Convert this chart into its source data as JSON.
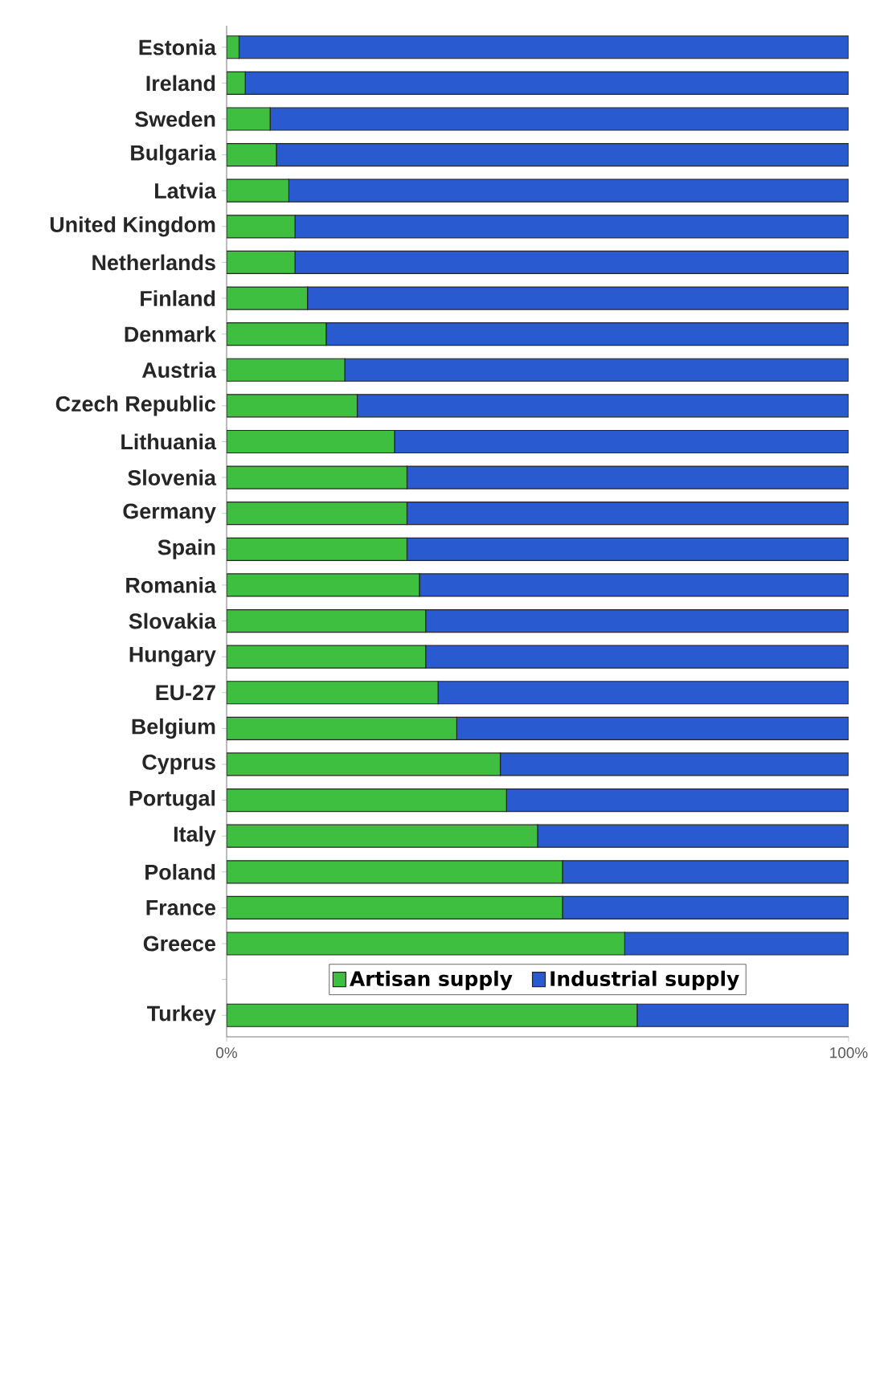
{
  "chart_data": {
    "type": "bar",
    "orientation": "horizontal",
    "stacked": true,
    "categories": [
      "Estonia",
      "Ireland",
      "Sweden",
      "Bulgaria",
      "Latvia",
      "United Kingdom",
      "Netherlands",
      "Finland",
      "Denmark",
      "Austria",
      "Czech Republic",
      "Lithuania",
      "Slovenia",
      "Germany",
      "Spain",
      "Romania",
      "Slovakia",
      "Hungary",
      "EU-27",
      "Belgium",
      "Cyprus",
      "Portugal",
      "Italy",
      "Poland",
      "France",
      "Greece",
      null,
      "Turkey"
    ],
    "series": [
      {
        "name": "Artisan supply",
        "color": "#3fbf3f",
        "values": [
          2,
          3,
          7,
          8,
          10,
          11,
          11,
          13,
          16,
          19,
          21,
          27,
          29,
          29,
          29,
          31,
          32,
          32,
          34,
          37,
          44,
          45,
          50,
          54,
          54,
          64,
          null,
          66
        ]
      },
      {
        "name": "Industrial supply",
        "color": "#2a5ad0",
        "values": [
          98,
          97,
          93,
          92,
          90,
          89,
          89,
          87,
          84,
          81,
          79,
          73,
          71,
          71,
          71,
          69,
          68,
          68,
          66,
          63,
          56,
          55,
          50,
          46,
          46,
          36,
          null,
          34
        ]
      }
    ],
    "xlim": [
      0,
      100
    ],
    "xticks": [
      {
        "value": 0,
        "label": "0%"
      },
      {
        "value": 100,
        "label": "100%"
      }
    ],
    "legend": "bottom"
  }
}
